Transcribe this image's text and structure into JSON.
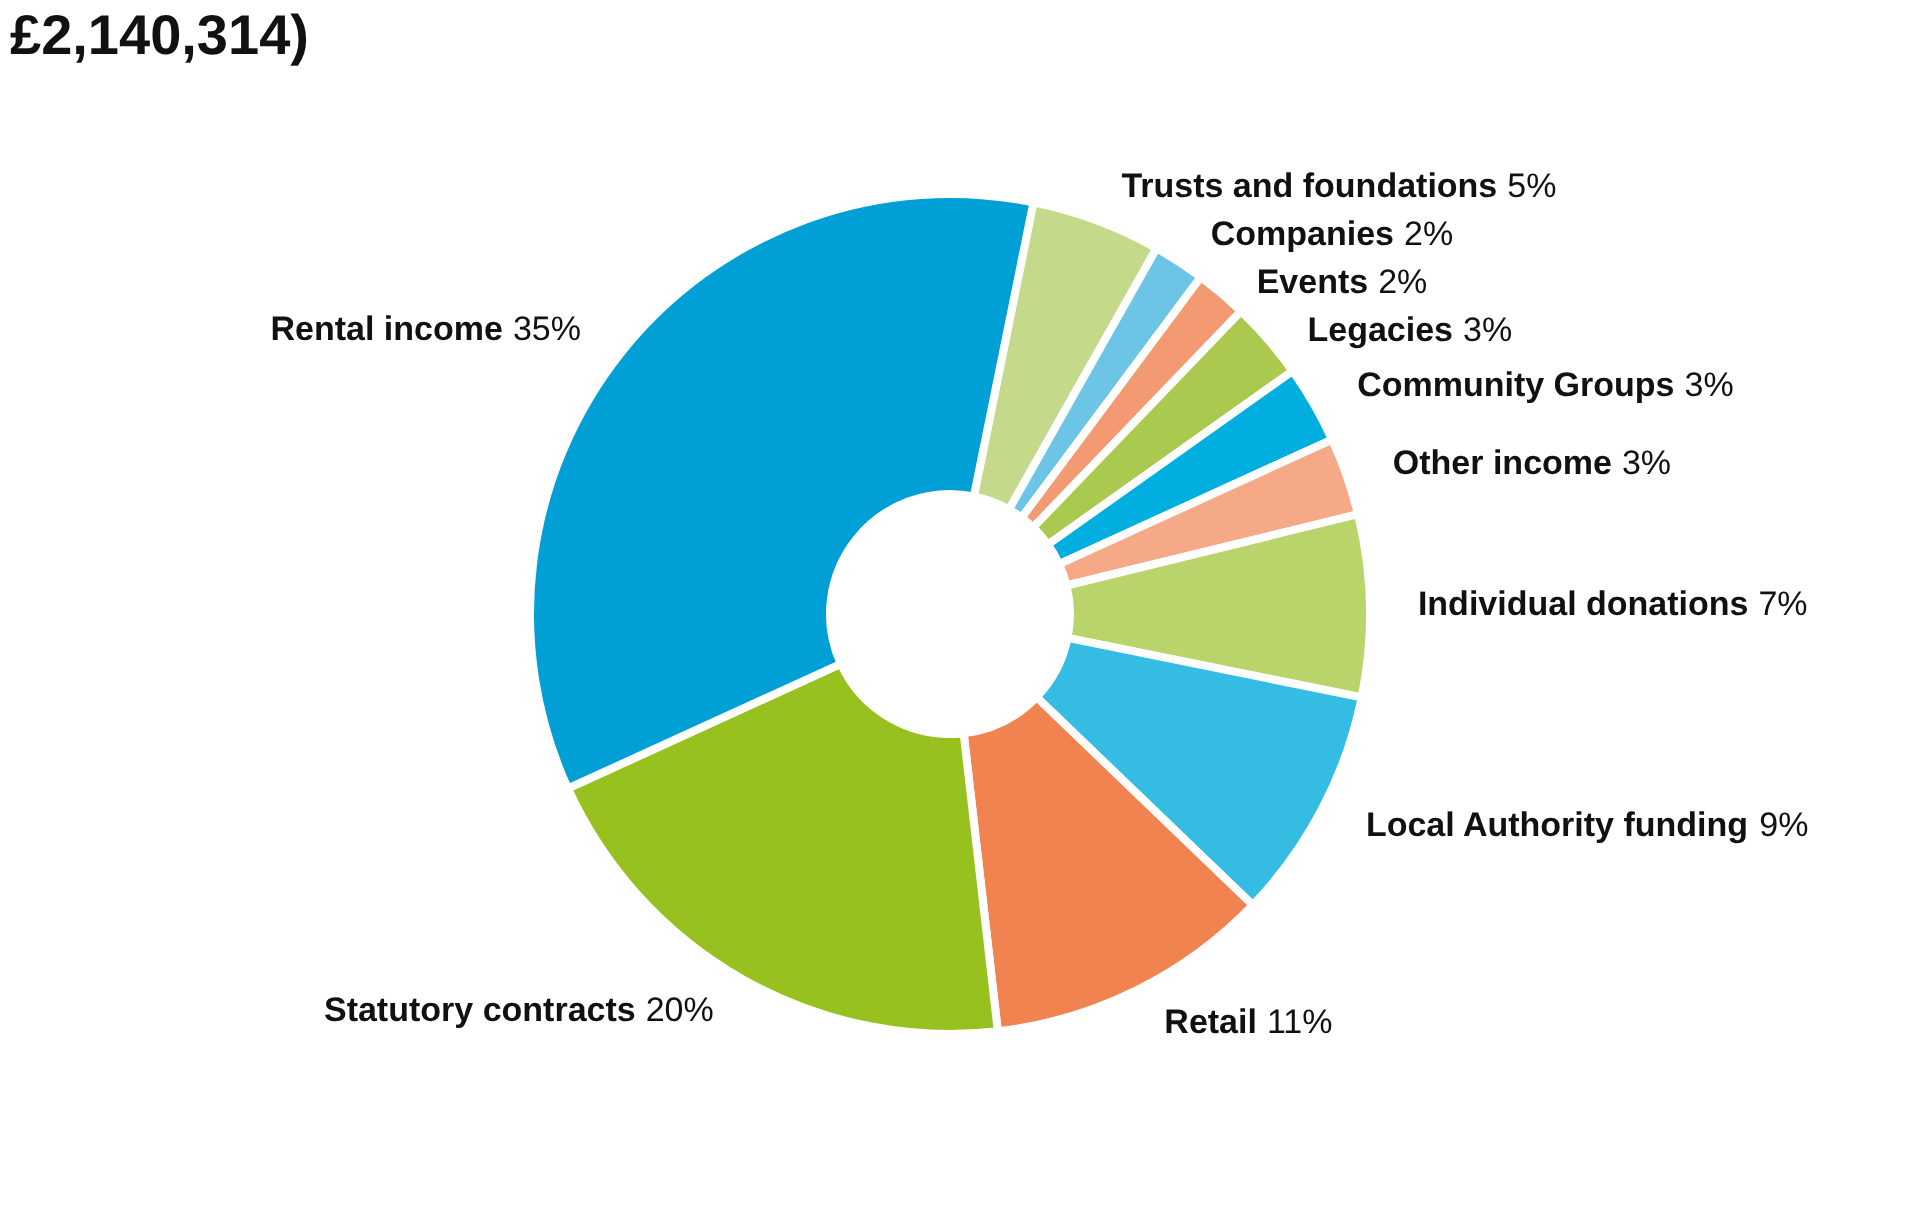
{
  "chart_data": {
    "type": "donut",
    "title": "£2,140,314)",
    "categories": [
      "Trusts and foundations",
      "Companies",
      "Events",
      "Legacies",
      "Community Groups",
      "Other income",
      "Individual donations",
      "Local Authority funding",
      "Retail",
      "Statutory contracts",
      "Rental income"
    ],
    "values": [
      5,
      2,
      2,
      3,
      3,
      3,
      7,
      9,
      11,
      20,
      35
    ],
    "colors": [
      "#c5d98a",
      "#6cc4e6",
      "#f39a72",
      "#a9c94f",
      "#00aee0",
      "#f5a987",
      "#b8d46a",
      "#35bce3",
      "#f08350",
      "#96c11f",
      "#00a0d6"
    ],
    "legend": false,
    "value_labels": [
      "5%",
      "2%",
      "2%",
      "3%",
      "3%",
      "3%",
      "7%",
      "9%",
      "11%",
      "20%",
      "35%"
    ]
  }
}
